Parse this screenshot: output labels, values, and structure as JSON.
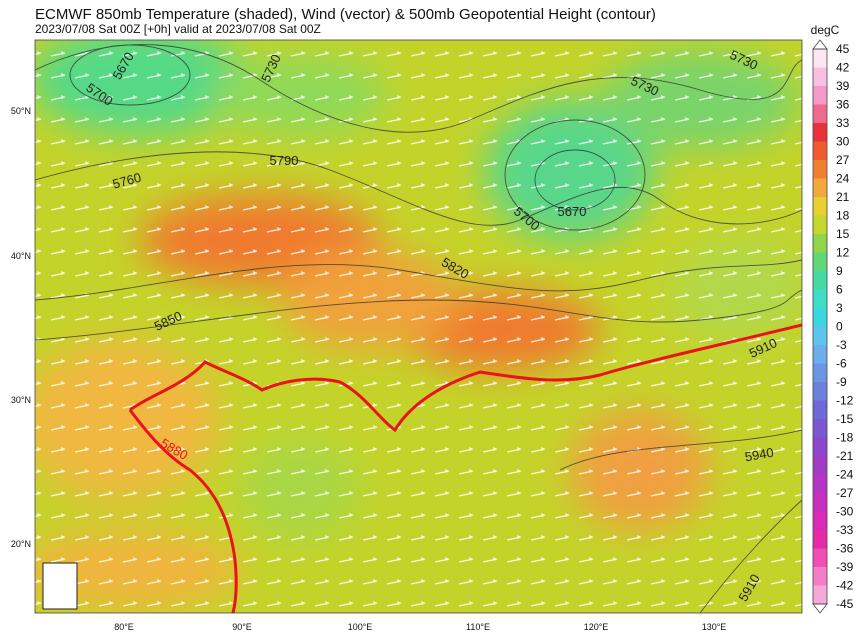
{
  "header": {
    "title": "ECMWF 850mb Temperature (shaded), Wind (vector) & 500mb Geopotential Height (contour)",
    "subtitle": "2023/07/08 Sat 00Z [+0h] valid at 2023/07/08 Sat 00Z"
  },
  "colorbar": {
    "unit": "degC",
    "labels": [
      "45",
      "42",
      "39",
      "36",
      "33",
      "30",
      "27",
      "24",
      "21",
      "18",
      "15",
      "12",
      "9",
      "6",
      "3",
      "0",
      "-3",
      "-6",
      "-9",
      "-12",
      "-15",
      "-18",
      "-21",
      "-24",
      "-27",
      "-30",
      "-33",
      "-36",
      "-39",
      "-42",
      "-45"
    ]
  },
  "map": {
    "lat_labels": [
      "50°N",
      "40°N",
      "30°N",
      "20°N"
    ],
    "lon_labels": [
      "80°E",
      "90°E",
      "100°E",
      "110°E",
      "120°E",
      "130°E"
    ],
    "contour_labels": [
      "5670",
      "5700",
      "5730",
      "5760",
      "5790",
      "5850",
      "5820",
      "5880",
      "5700",
      "5670",
      "5730",
      "5730",
      "5910",
      "5940",
      "5910"
    ]
  }
}
